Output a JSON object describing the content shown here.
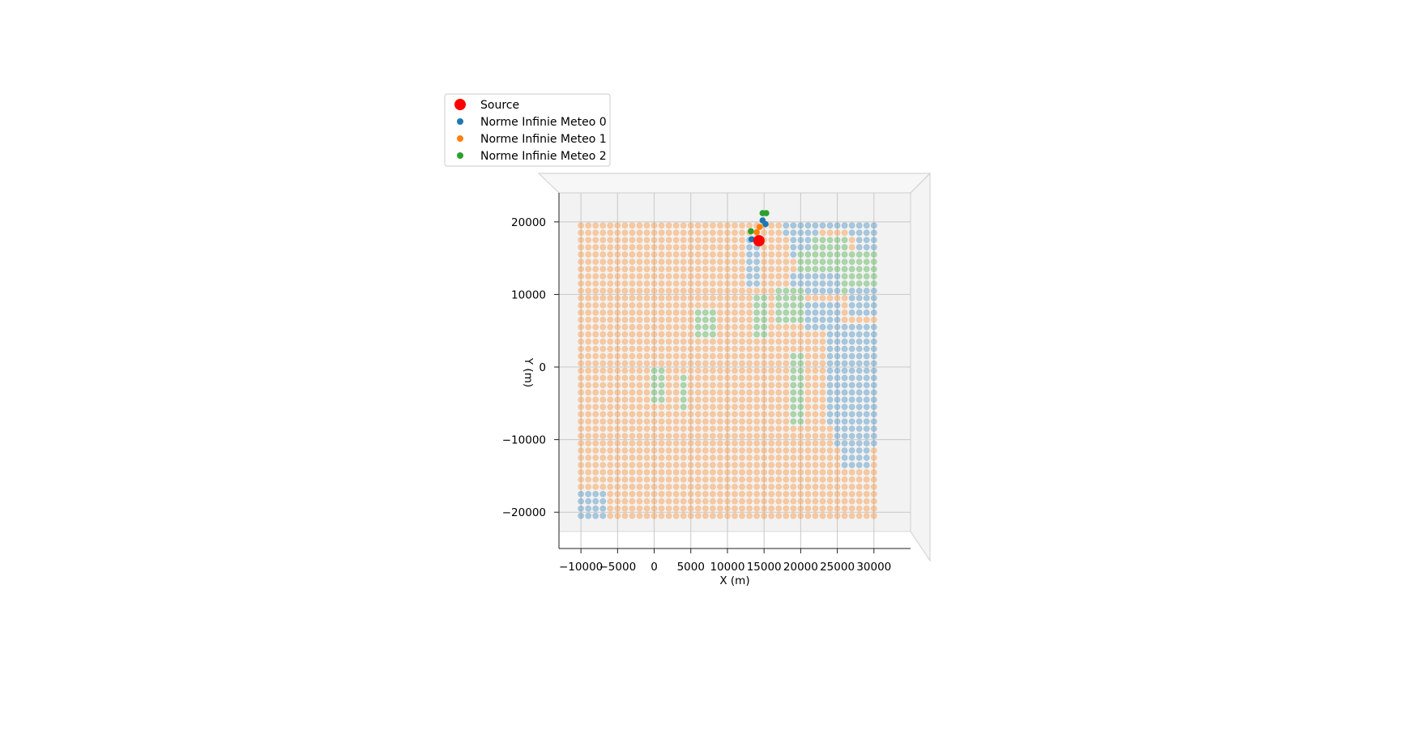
{
  "chart_data": {
    "type": "scatter",
    "xlabel": "X (m)",
    "ylabel": "Y (m)",
    "xlim": [
      -13000,
      35000
    ],
    "ylim": [
      -25000,
      24000
    ],
    "x_ticks": [
      "−10000",
      "−5000",
      "0",
      "5000",
      "10000",
      "15000",
      "20000",
      "25000",
      "30000"
    ],
    "x_tick_values": [
      -10000,
      -5000,
      0,
      5000,
      10000,
      15000,
      20000,
      25000,
      30000
    ],
    "y_ticks": [
      "20000",
      "10000",
      "0",
      "−10000",
      "−20000"
    ],
    "y_tick_values": [
      20000,
      10000,
      0,
      -10000,
      -20000
    ],
    "grid": true,
    "legend_placement": "top-left",
    "grid_spec": {
      "x_start": -10000,
      "x_step": 1000,
      "x_count": 41,
      "y_start": -20500,
      "y_step": 1000,
      "y_count": 41
    },
    "region_rects": [
      {
        "series": 0,
        "x": [
          20500,
          31000
        ],
        "y": [
          19500,
          20500
        ]
      },
      {
        "series": 0,
        "x": [
          18000,
          22000
        ],
        "y": [
          18500,
          19500
        ]
      },
      {
        "series": 0,
        "x": [
          27000,
          31000
        ],
        "y": [
          18500,
          19500
        ]
      },
      {
        "series": 2,
        "x": [
          21000,
          26000
        ],
        "y": [
          16500,
          17500
        ]
      },
      {
        "series": 0,
        "x": [
          28000,
          31000
        ],
        "y": [
          16500,
          18000
        ]
      },
      {
        "series": 0,
        "x": [
          19000,
          21000
        ],
        "y": [
          15500,
          17500
        ]
      },
      {
        "series": 2,
        "x": [
          20000,
          31000
        ],
        "y": [
          13500,
          15500
        ]
      },
      {
        "series": 2,
        "x": [
          26000,
          31000
        ],
        "y": [
          10500,
          13500
        ]
      },
      {
        "series": 0,
        "x": [
          19000,
          25000
        ],
        "y": [
          10500,
          12500
        ]
      },
      {
        "series": 0,
        "x": [
          27000,
          31000
        ],
        "y": [
          7500,
          10500
        ]
      },
      {
        "series": 0,
        "x": [
          21000,
          25000
        ],
        "y": [
          5500,
          8500
        ]
      },
      {
        "series": 2,
        "x": [
          17000,
          20000
        ],
        "y": [
          6500,
          10500
        ]
      },
      {
        "series": 0,
        "x": [
          24000,
          31000
        ],
        "y": [
          -1500,
          5500
        ]
      },
      {
        "series": 0,
        "x": [
          23500,
          31000
        ],
        "y": [
          -7500,
          -1500
        ]
      },
      {
        "series": 0,
        "x": [
          24500,
          31000
        ],
        "y": [
          -10500,
          -7500
        ]
      },
      {
        "series": 0,
        "x": [
          25500,
          29500
        ],
        "y": [
          -13500,
          -10500
        ]
      },
      {
        "series": 2,
        "x": [
          18500,
          20500
        ],
        "y": [
          -7500,
          1500
        ]
      },
      {
        "series": 2,
        "x": [
          6000,
          8500
        ],
        "y": [
          4500,
          7500
        ]
      },
      {
        "series": 2,
        "x": [
          0,
          1500
        ],
        "y": [
          -4500,
          0
        ]
      },
      {
        "series": 2,
        "x": [
          3500,
          4500
        ],
        "y": [
          -5500,
          -1500
        ]
      },
      {
        "series": 2,
        "x": [
          14000,
          15000
        ],
        "y": [
          4500,
          9500
        ]
      },
      {
        "series": 0,
        "x": [
          -10000,
          -6500
        ],
        "y": [
          -20500,
          -17500
        ]
      },
      {
        "series": 0,
        "x": [
          13000,
          14000
        ],
        "y": [
          11500,
          17500
        ]
      }
    ],
    "series": [
      {
        "name": "Norme Infinie Meteo 0",
        "color": "#1f77b4",
        "alpha": 0.35
      },
      {
        "name": "Norme Infinie Meteo 1",
        "color": "#ff7f0e",
        "alpha": 0.35
      },
      {
        "name": "Norme Infinie Meteo 2",
        "color": "#2ca02c",
        "alpha": 0.35
      }
    ],
    "highlight_points": [
      {
        "series": 2,
        "x": 14800,
        "y": 21200
      },
      {
        "series": 2,
        "x": 15300,
        "y": 21200
      },
      {
        "series": 0,
        "x": 14800,
        "y": 20200
      },
      {
        "series": 0,
        "x": 15200,
        "y": 19700
      },
      {
        "series": 1,
        "x": 14400,
        "y": 19300
      },
      {
        "series": 2,
        "x": 13200,
        "y": 18700
      },
      {
        "series": 0,
        "x": 13300,
        "y": 17600
      },
      {
        "series": 1,
        "x": 14000,
        "y": 18600
      }
    ],
    "source": {
      "name": "Source",
      "x": 14300,
      "y": 17400,
      "color": "#ff0000"
    }
  }
}
